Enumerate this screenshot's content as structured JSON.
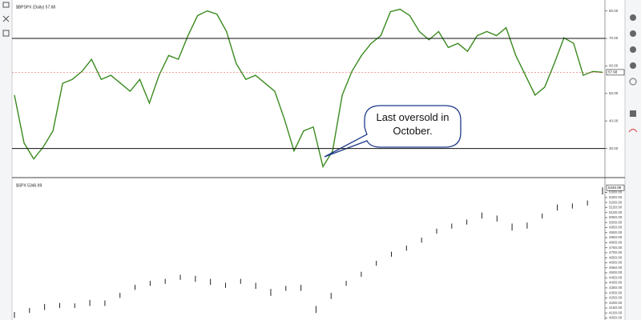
{
  "chart_data": [
    {
      "type": "line",
      "title": "$BPSPX (Daily) 57.68",
      "color": "#3a8a1e",
      "values": [
        49.4,
        32,
        26.2,
        30.6,
        36.4,
        53.7,
        55.1,
        58,
        62.4,
        55.1,
        56.6,
        53.7,
        50.8,
        55.1,
        46.5,
        56.6,
        63.8,
        62.4,
        71,
        78.3,
        80,
        78.8,
        72.5,
        60.9,
        55.1,
        56.6,
        53.7,
        50.8,
        40.7,
        29.1,
        36.4,
        37.8,
        23.4,
        29.1,
        49.4,
        58,
        63.8,
        68.2,
        71,
        79.7,
        80.6,
        78.3,
        72.5,
        69.5,
        72.5,
        66.7,
        68.2,
        65.3,
        71,
        72.5,
        71,
        73.9,
        63.8,
        56.6,
        49.4,
        52.3,
        60.9,
        70.2,
        68.2,
        56.6,
        58,
        57.68
      ],
      "ylim": [
        20,
        82.5
      ],
      "yticks": [
        {
          "value": 30,
          "label": "30.00"
        },
        {
          "value": 40,
          "label": "40.00"
        },
        {
          "value": 50,
          "label": "50.00"
        },
        {
          "value": 60,
          "label": "60.00"
        },
        {
          "value": 70,
          "label": "70.00"
        },
        {
          "value": 80,
          "label": "80.00"
        }
      ],
      "hlines": [
        70,
        30
      ],
      "last_value": 57.68,
      "annotation": "Last oversold in October."
    },
    {
      "type": "hilo",
      "title": "$SPX 5346.99",
      "color": "#222222",
      "high": [
        4110,
        4150,
        4190,
        4200,
        4195,
        4230,
        4225,
        4300,
        4380,
        4420,
        4440,
        4480,
        4470,
        4440,
        4400,
        4440,
        4400,
        4340,
        4370,
        4380,
        4170,
        4300,
        4420,
        4510,
        4620,
        4710,
        4770,
        4850,
        4940,
        4990,
        5030,
        5100,
        5070,
        4990,
        5000,
        5090,
        5180,
        5190,
        5220,
        5350
      ],
      "low": [
        4050,
        4100,
        4130,
        4150,
        4150,
        4170,
        4170,
        4250,
        4330,
        4370,
        4390,
        4430,
        4410,
        4380,
        4350,
        4390,
        4340,
        4270,
        4320,
        4320,
        4100,
        4240,
        4370,
        4460,
        4570,
        4660,
        4720,
        4800,
        4890,
        4940,
        4980,
        5040,
        5010,
        4920,
        4940,
        5040,
        5120,
        5140,
        5170,
        5280
      ],
      "ylim": [
        4030,
        5400
      ],
      "yticks": [
        {
          "value": 4050,
          "label": "4050.00"
        },
        {
          "value": 4100,
          "label": "4100.00"
        },
        {
          "value": 4150,
          "label": "4150.00"
        },
        {
          "value": 4200,
          "label": "4200.00"
        },
        {
          "value": 4250,
          "label": "4250.00"
        },
        {
          "value": 4300,
          "label": "4300.00"
        },
        {
          "value": 4350,
          "label": "4350.00"
        },
        {
          "value": 4400,
          "label": "4400.00"
        },
        {
          "value": 4450,
          "label": "4450.00"
        },
        {
          "value": 4500,
          "label": "4500.00"
        },
        {
          "value": 4550,
          "label": "4550.00"
        },
        {
          "value": 4600,
          "label": "4600.00"
        },
        {
          "value": 4650,
          "label": "4650.00"
        },
        {
          "value": 4700,
          "label": "4700.00"
        },
        {
          "value": 4750,
          "label": "4750.00"
        },
        {
          "value": 4800,
          "label": "4800.00"
        },
        {
          "value": 4850,
          "label": "4850.00"
        },
        {
          "value": 4900,
          "label": "4900.00"
        },
        {
          "value": 4950,
          "label": "4950.00"
        },
        {
          "value": 5000,
          "label": "5000.00"
        },
        {
          "value": 5050,
          "label": "5050.00"
        },
        {
          "value": 5100,
          "label": "5100.00"
        },
        {
          "value": 5150,
          "label": "5150.00"
        },
        {
          "value": 5200,
          "label": "5200.00"
        },
        {
          "value": 5250,
          "label": "5250.00"
        },
        {
          "value": 5300,
          "label": "5300.00"
        }
      ],
      "last_value": 5346.99
    }
  ]
}
